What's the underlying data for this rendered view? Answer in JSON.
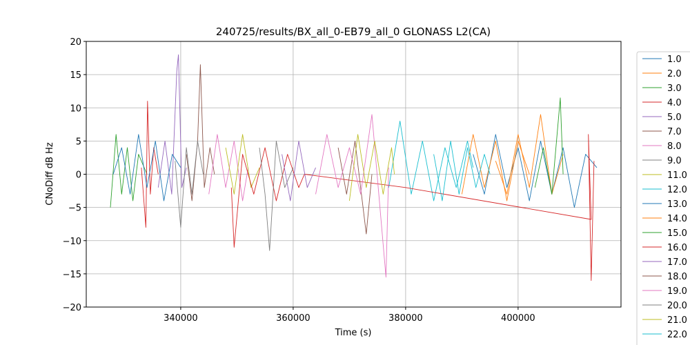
{
  "chart_data": {
    "type": "line",
    "title": "240725/results/BX_all_0-EB79_all_0 GLONASS L2(CA)",
    "x_label": "Time (s)",
    "y_label": "CNoDiff dB Hz",
    "xlim": [
      323200,
      418300
    ],
    "ylim": [
      -20,
      20
    ],
    "xticks": [
      340000,
      360000,
      380000,
      400000
    ],
    "yticks": [
      {
        "value": -20,
        "label": "−20"
      },
      {
        "value": -15,
        "label": "−15"
      },
      {
        "value": -10,
        "label": "−10"
      },
      {
        "value": -5,
        "label": "−5"
      },
      0,
      5,
      10,
      15,
      20
    ],
    "grid": true,
    "series": [
      {
        "name": "1.0",
        "color": "#1f77b4",
        "x": [
          392000,
          394000,
          396000,
          398000,
          400000,
          402000,
          404000,
          406000,
          408000,
          410000,
          412000,
          414000
        ],
        "values": [
          3,
          -3,
          6,
          -2,
          4,
          -4,
          5,
          -3,
          4,
          -5,
          3,
          1
        ]
      },
      {
        "name": "2.0",
        "color": "#ff7f0e",
        "x": [
          396000,
          398000,
          400000,
          402000,
          404000,
          406000,
          408000
        ],
        "values": [
          2,
          -3,
          6,
          -2,
          9,
          -3,
          3
        ]
      },
      {
        "name": "3.0",
        "color": "#2ca02c",
        "x": [
          327500,
          328500,
          329500,
          330500,
          331500,
          332500,
          334000
        ],
        "values": [
          -5,
          6,
          -3,
          4,
          -4,
          3,
          0
        ]
      },
      {
        "name": "4.0",
        "color": "#d62728",
        "x": [
          333000,
          333800,
          334100,
          334600,
          335200,
          336000
        ],
        "values": [
          1,
          -8,
          11,
          -3,
          4,
          0
        ]
      },
      {
        "name": "5.0",
        "color": "#9467bd",
        "x": [
          336000,
          337200,
          338400,
          339300,
          339600,
          340200,
          341000
        ],
        "values": [
          -2,
          5,
          -3,
          15.5,
          18,
          -2,
          1
        ]
      },
      {
        "name": "7.0",
        "color": "#8c564b",
        "x": [
          341000,
          342000,
          343000,
          343500,
          344200,
          345200,
          346000
        ],
        "values": [
          3,
          -4,
          5,
          16.5,
          -2,
          4,
          0
        ]
      },
      {
        "name": "8.0",
        "color": "#e377c2",
        "x": [
          345000,
          346500,
          348000,
          349500,
          351000,
          352000
        ],
        "values": [
          -3,
          6,
          -2,
          5,
          -4,
          1
        ]
      },
      {
        "name": "9.0",
        "color": "#7f7f7f",
        "x": [
          339000,
          340000,
          341000,
          342000,
          343000,
          344000
        ],
        "values": [
          2,
          -8,
          4,
          -3,
          5,
          0
        ]
      },
      {
        "name": "11.0",
        "color": "#bcbd22",
        "x": [
          348000,
          349500,
          351000,
          352500,
          354000
        ],
        "values": [
          4,
          -3,
          6,
          -2,
          1
        ]
      },
      {
        "name": "12.0",
        "color": "#17becf",
        "x": [
          377000,
          379000,
          381000,
          383000,
          385000,
          387000,
          389000,
          391000,
          392000
        ],
        "values": [
          -2,
          8,
          -3,
          5,
          -4,
          4,
          -2,
          5,
          1
        ]
      },
      {
        "name": "13.0",
        "color": "#1f77b4",
        "x": [
          328000,
          329500,
          331000,
          332500,
          334000,
          335500,
          337000,
          338500,
          340000
        ],
        "values": [
          0,
          4,
          -3,
          6,
          -2,
          5,
          -4,
          3,
          1
        ]
      },
      {
        "name": "14.0",
        "color": "#ff7f0e",
        "x": [
          390000,
          392000,
          394000,
          396000,
          398000,
          400000,
          402000
        ],
        "values": [
          -3,
          6,
          -2,
          5,
          -4,
          5,
          0
        ]
      },
      {
        "name": "15.0",
        "color": "#2ca02c",
        "x": [
          403000,
          404500,
          406000,
          407500,
          408000
        ],
        "values": [
          -2,
          4,
          -3,
          11.5,
          0
        ]
      },
      {
        "name": "16.0",
        "color": "#d62728",
        "x": [
          349000,
          349500,
          351000,
          353000,
          355000,
          357000,
          359000,
          361000,
          362000,
          380000,
          413000,
          412500,
          413000,
          413500
        ],
        "values": [
          -2,
          -11,
          3,
          -3,
          4,
          -4,
          3,
          -2,
          0,
          -2,
          -6.8,
          6,
          -16,
          2
        ]
      },
      {
        "name": "17.0",
        "color": "#9467bd",
        "x": [
          358000,
          359500,
          361000,
          362500,
          364000
        ],
        "values": [
          3,
          -4,
          5,
          -2,
          1
        ]
      },
      {
        "name": "18.0",
        "color": "#8c564b",
        "x": [
          368000,
          369500,
          371000,
          373000,
          374000
        ],
        "values": [
          4,
          -3,
          5,
          -9,
          0
        ]
      },
      {
        "name": "19.0",
        "color": "#e377c2",
        "x": [
          364000,
          366000,
          368000,
          370000,
          372000,
          374000,
          376500,
          377000
        ],
        "values": [
          -3,
          6,
          -2,
          4,
          -3,
          9,
          -15.5,
          1
        ]
      },
      {
        "name": "20.0",
        "color": "#7f7f7f",
        "x": [
          354000,
          355000,
          355800,
          357000,
          358500,
          360000
        ],
        "values": [
          4,
          -3,
          -11.5,
          5,
          -2,
          1
        ]
      },
      {
        "name": "21.0",
        "color": "#bcbd22",
        "x": [
          370000,
          371500,
          373000,
          374500,
          376000,
          377500,
          378000
        ],
        "values": [
          -4,
          6,
          -2,
          5,
          -3,
          4,
          0
        ]
      },
      {
        "name": "22.0",
        "color": "#17becf",
        "x": [
          385000,
          386500,
          388000,
          389500,
          391000,
          392500,
          394000,
          395000
        ],
        "values": [
          3,
          -4,
          5,
          -3,
          4,
          -2,
          3,
          0
        ]
      }
    ]
  }
}
